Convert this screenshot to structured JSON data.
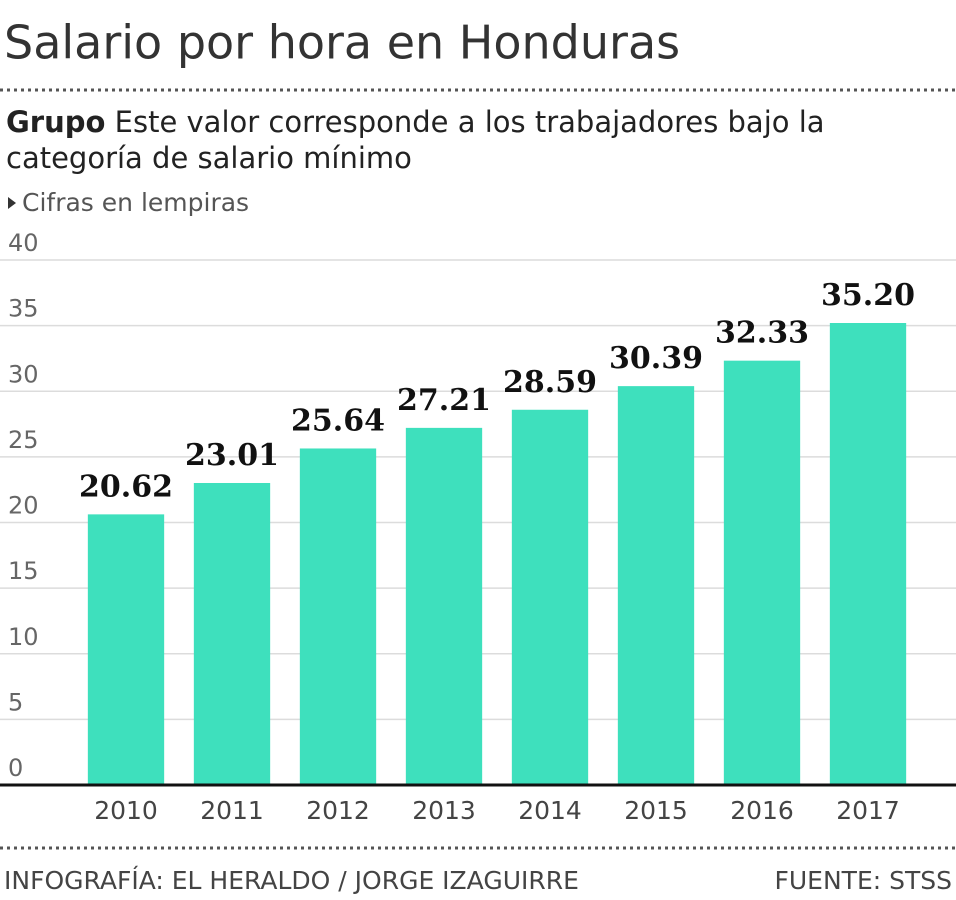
{
  "chart_data": {
    "type": "bar",
    "title": "Salario por hora en Honduras",
    "subtitle_label": "Grupo",
    "subtitle": "Este valor corresponde a los trabajadores bajo la categoría de salario mínimo",
    "note": "Cifras en lempiras",
    "categories": [
      "2010",
      "2011",
      "2012",
      "2013",
      "2014",
      "2015",
      "2016",
      "2017"
    ],
    "values": [
      20.62,
      23.01,
      25.64,
      27.21,
      28.59,
      30.39,
      32.33,
      35.2
    ],
    "value_labels": [
      "20.62",
      "23.01",
      "25.64",
      "27.21",
      "28.59",
      "30.39",
      "32.33",
      "35.20"
    ],
    "color": "#3ee0bd",
    "ylim": [
      0,
      40
    ],
    "yticks": [
      0,
      5,
      10,
      15,
      20,
      25,
      30,
      35,
      40
    ],
    "grid": true,
    "credit": "INFOGRAFÍA: EL HERALDO / JORGE IZAGUIRRE",
    "source": "FUENTE: STSS"
  }
}
